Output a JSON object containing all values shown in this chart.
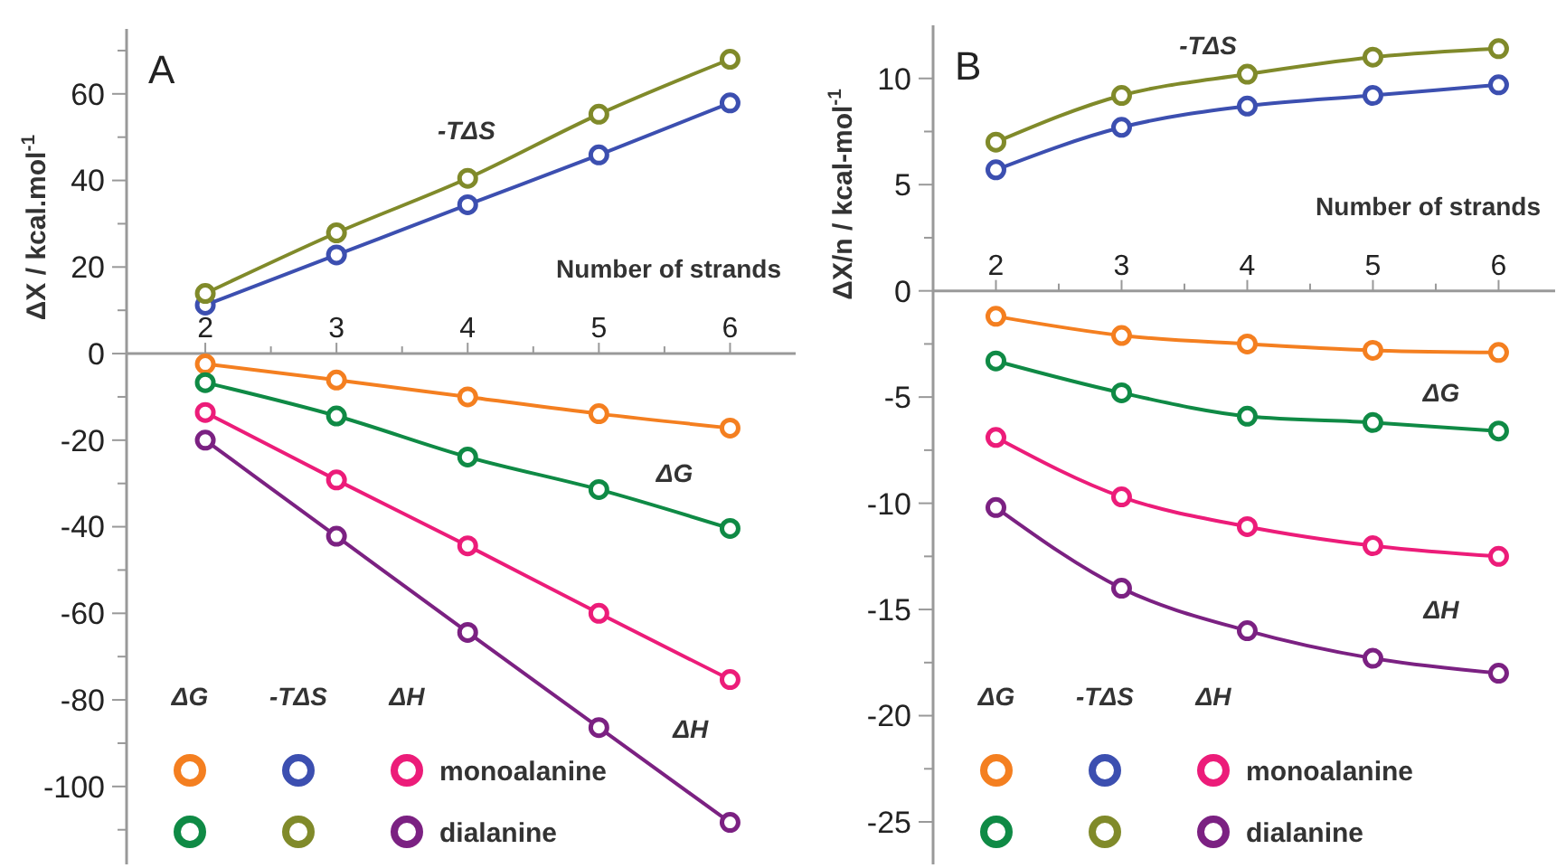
{
  "chart_data": [
    {
      "type": "line",
      "title": "A",
      "xlabel": "Number of strands",
      "ylabel": "ΔX / kcal.mol$^{-1}$",
      "x": [
        2,
        3,
        4,
        5,
        6
      ],
      "xlim": [
        1.4,
        6.5
      ],
      "xticks": [
        2,
        {
          "value": 2.5,
          "label": null
        },
        3,
        {
          "value": 3.5,
          "label": null
        },
        4,
        {
          "value": 4.5,
          "label": null
        },
        5,
        {
          "value": 5.5,
          "label": null
        },
        6
      ],
      "ylim": [
        -118,
        75
      ],
      "yticks": [
        {
          "value": 70,
          "label": null
        },
        60,
        {
          "value": 50,
          "label": null
        },
        40,
        {
          "value": 30,
          "label": null
        },
        20,
        {
          "value": 10,
          "label": null
        },
        0,
        {
          "value": -10,
          "label": null
        },
        -20,
        {
          "value": -30,
          "label": null
        },
        -40,
        {
          "value": -50,
          "label": null
        },
        -60,
        {
          "value": -70,
          "label": null
        },
        -80,
        {
          "value": -90,
          "label": null
        },
        -100,
        {
          "value": -110,
          "label": null
        }
      ],
      "grid": false,
      "legend": "bottom left",
      "marker": "circle",
      "line_style": "solid",
      "series": [
        {
          "color": "#f47f20",
          "values": [
            -2.4,
            -6.1,
            -10,
            -13.9,
            -17.2
          ]
        },
        {
          "color": "#0f8a45",
          "values": [
            -6.7,
            -14.4,
            -23.9,
            -31.4,
            -40.4
          ]
        },
        {
          "color": "#3c4fb0",
          "values": [
            11.2,
            22.8,
            34.4,
            45.9,
            57.9
          ]
        },
        {
          "color": "#808a2a",
          "values": [
            13.9,
            27.9,
            40.5,
            55.3,
            68
          ]
        },
        {
          "name": "monoalanine",
          "color": "#ec1c79",
          "values": [
            -13.6,
            -29.2,
            -44.4,
            -60,
            -75.3
          ]
        },
        {
          "name": "dialanine",
          "color": "#7b2182",
          "values": [
            -20,
            -42.2,
            -64.4,
            -86.4,
            -108.3
          ]
        }
      ],
      "annotations": [
        "ΔG",
        "-TΔS",
        "ΔH",
        "-TΔS",
        "ΔG",
        "ΔH"
      ]
    },
    {
      "type": "line",
      "title": "B",
      "xlabel": "Number of strands",
      "ylabel": "ΔX/n / kcal-mol$^{-1}$",
      "x": [
        2,
        3,
        4,
        5,
        6
      ],
      "xlim": [
        1.5,
        6.45
      ],
      "xticks": [
        2,
        {
          "value": 2.5,
          "label": null
        },
        3,
        {
          "value": 3.5,
          "label": null
        },
        4,
        {
          "value": 4.5,
          "label": null
        },
        5,
        {
          "value": 5.5,
          "label": null
        },
        6
      ],
      "ylim": [
        -27,
        12.5
      ],
      "yticks": [
        10,
        {
          "value": 7.5,
          "label": null
        },
        5,
        {
          "value": 2.5,
          "label": null
        },
        0,
        {
          "value": -2.5,
          "label": null
        },
        -5,
        {
          "value": -7.5,
          "label": null
        },
        -10,
        {
          "value": -12.5,
          "label": null
        },
        -15,
        {
          "value": -17.5,
          "label": null
        },
        -20,
        {
          "value": -22.5,
          "label": null
        },
        -25
      ],
      "grid": false,
      "legend": "bottom left",
      "marker": "circle",
      "line_style": "solid",
      "series": [
        {
          "color": "#f47f20",
          "values": [
            -1.2,
            -2.1,
            -2.5,
            -2.8,
            -2.9
          ]
        },
        {
          "color": "#0f8a45",
          "values": [
            -3.3,
            -4.8,
            -5.9,
            -6.2,
            -6.6
          ]
        },
        {
          "color": "#3c4fb0",
          "values": [
            5.7,
            7.7,
            8.7,
            9.2,
            9.7
          ]
        },
        {
          "color": "#808a2a",
          "values": [
            7,
            9.2,
            10.2,
            11,
            11.4
          ]
        },
        {
          "name": "monoalanine",
          "color": "#ec1c79",
          "values": [
            -6.9,
            -9.7,
            -11.1,
            -12,
            -12.5
          ]
        },
        {
          "name": "dialanine",
          "color": "#7b2182",
          "values": [
            -10.2,
            -14,
            -16,
            -17.3,
            -18
          ]
        }
      ],
      "annotations": [
        "ΔG",
        "-TΔS",
        "ΔH",
        "-TΔS",
        "ΔG",
        "ΔH"
      ]
    }
  ]
}
